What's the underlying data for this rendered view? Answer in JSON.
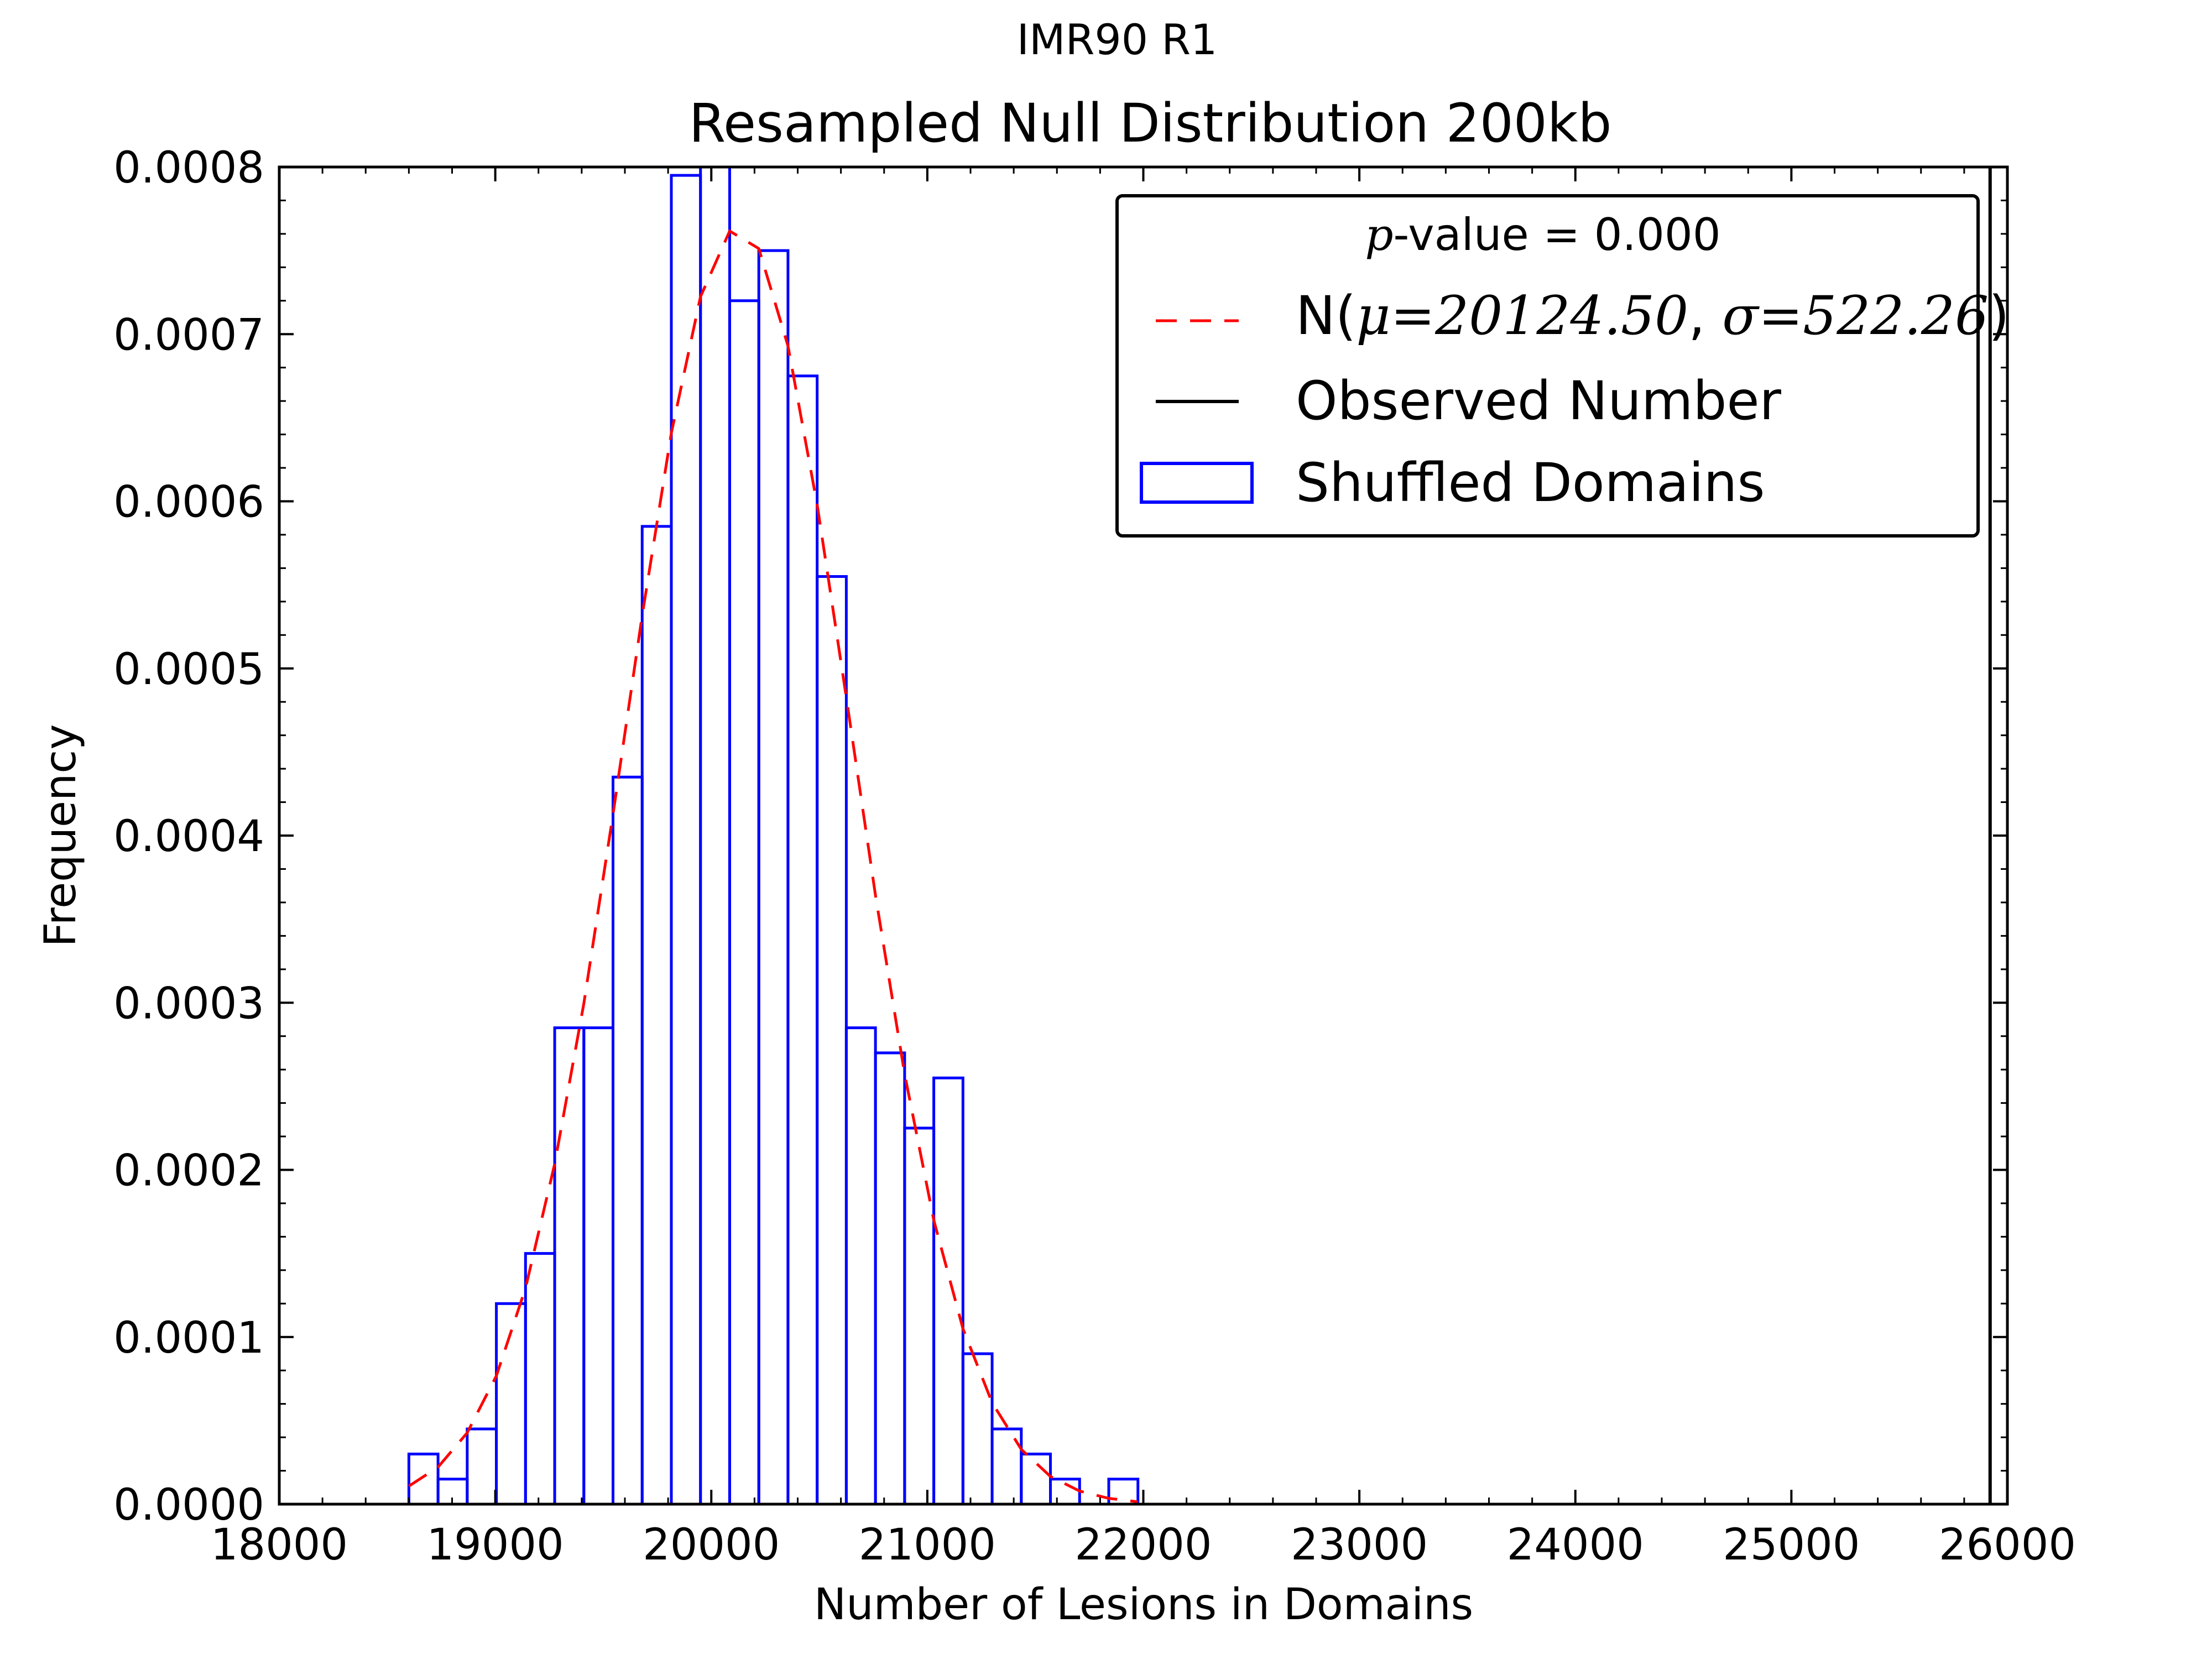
{
  "chart_data": {
    "type": "bar",
    "suptitle": "IMR90 R1",
    "title": "Resampled Null Distribution 200kb",
    "xlabel": "Number of Lesions in Domains",
    "ylabel": "Frequency",
    "xlim": [
      18000,
      26000
    ],
    "ylim": [
      0,
      0.0008
    ],
    "x_ticks": [
      18000,
      19000,
      20000,
      21000,
      22000,
      23000,
      24000,
      25000,
      26000
    ],
    "x_tick_labels": [
      "18000",
      "19000",
      "20000",
      "21000",
      "22000",
      "23000",
      "24000",
      "25000",
      "26000"
    ],
    "y_ticks": [
      0,
      0.0001,
      0.0002,
      0.0003,
      0.0004,
      0.0005,
      0.0006,
      0.0007,
      0.0008
    ],
    "y_tick_labels": [
      "0.0000",
      "0.0001",
      "0.0002",
      "0.0003",
      "0.0004",
      "0.0005",
      "0.0006",
      "0.0007",
      "0.0008"
    ],
    "grid": false,
    "legend_position": "top-right",
    "histogram": {
      "name": "Shuffled Domains",
      "color": "#0000ff",
      "bin_edges": [
        18600,
        18735,
        18870,
        19005,
        19140,
        19275,
        19410,
        19545,
        19680,
        19815,
        19950,
        20085,
        20220,
        20355,
        20490,
        20625,
        20760,
        20895,
        21030,
        21165,
        21300,
        21435,
        21570,
        21705,
        21840,
        21975
      ],
      "values": [
        3e-05,
        1.5e-05,
        4.5e-05,
        0.00012,
        0.00015,
        0.000285,
        0.000285,
        0.000435,
        0.000585,
        0.000795,
        0.000825,
        0.00072,
        0.00075,
        0.000675,
        0.000555,
        0.000285,
        0.00027,
        0.000225,
        0.000255,
        9e-05,
        4.5e-05,
        3e-05,
        1.5e-05,
        0,
        1.5e-05
      ]
    },
    "normal_fit": {
      "name": "N(μ=20124.50, σ=522.26)",
      "label_prefix": "N(",
      "mu_label": "μ=20124.50",
      "sigma_label": "σ=522.26",
      "label_suffix": ")",
      "mu": 20124.5,
      "sigma": 522.26,
      "color": "#ff0000",
      "line_style": "dashed",
      "x_range": [
        18600,
        21975
      ],
      "points": 26
    },
    "observed": {
      "name": "Observed Number",
      "value": 25920,
      "color": "#000000"
    },
    "annotation": {
      "p_symbol": "p",
      "text": "-value = 0.000"
    }
  }
}
